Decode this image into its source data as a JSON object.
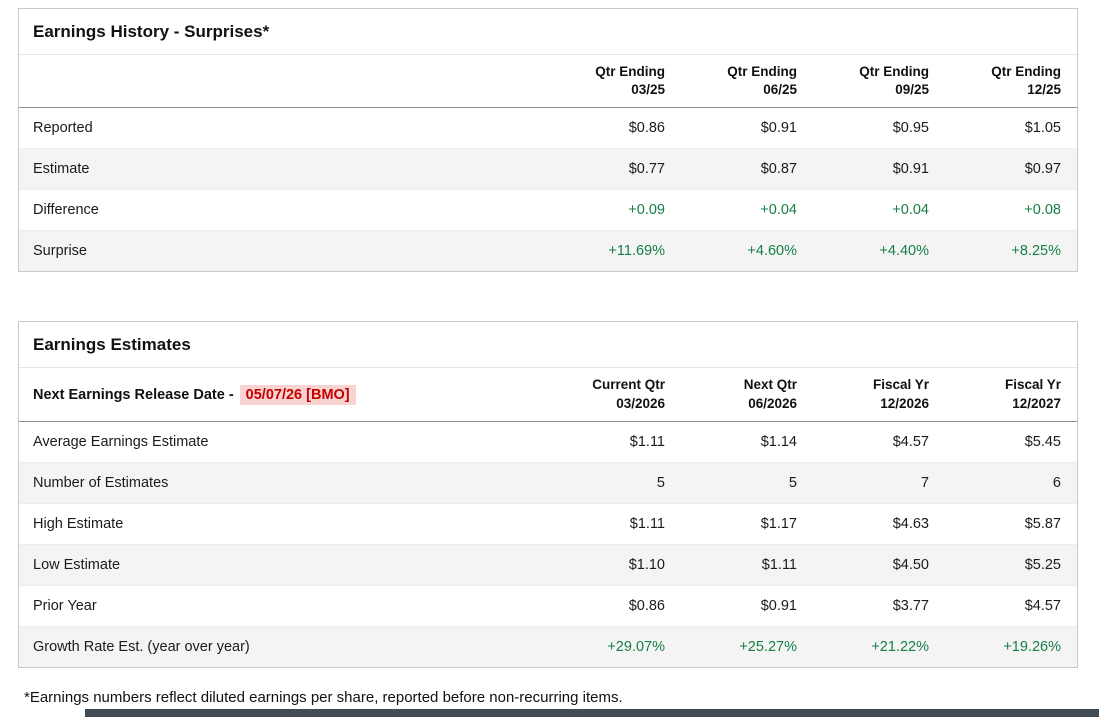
{
  "colors": {
    "green": "#157f45",
    "red": "#c40000",
    "red-bg": "#f9d2d2",
    "row-alt": "#f4f4f4",
    "footer-bar": "#434c54"
  },
  "earnings_history": {
    "title": "Earnings History - Surprises*",
    "columns": [
      "Qtr Ending\n03/25",
      "Qtr Ending\n06/25",
      "Qtr Ending\n09/25",
      "Qtr Ending\n12/25"
    ],
    "rows": [
      {
        "label": "Reported",
        "values": [
          "$0.86",
          "$0.91",
          "$0.95",
          "$1.05"
        ]
      },
      {
        "label": "Estimate",
        "values": [
          "$0.77",
          "$0.87",
          "$0.91",
          "$0.97"
        ]
      },
      {
        "label": "Difference",
        "values": [
          "+0.09",
          "+0.04",
          "+0.04",
          "+0.08"
        ]
      },
      {
        "label": "Surprise",
        "values": [
          "+11.69%",
          "+4.60%",
          "+4.40%",
          "+8.25%"
        ]
      }
    ]
  },
  "earnings_estimates": {
    "title": "Earnings Estimates",
    "release_label": "Next Earnings Release Date -",
    "release_date": "05/07/26 [BMO]",
    "columns": [
      "Current Qtr\n03/2026",
      "Next Qtr\n06/2026",
      "Fiscal Yr\n12/2026",
      "Fiscal Yr\n12/2027"
    ],
    "rows": [
      {
        "label": "Average Earnings Estimate",
        "values": [
          "$1.11",
          "$1.14",
          "$4.57",
          "$5.45"
        ]
      },
      {
        "label": "Number of Estimates",
        "values": [
          "5",
          "5",
          "7",
          "6"
        ]
      },
      {
        "label": "High Estimate",
        "values": [
          "$1.11",
          "$1.17",
          "$4.63",
          "$5.87"
        ]
      },
      {
        "label": "Low Estimate",
        "values": [
          "$1.10",
          "$1.11",
          "$4.50",
          "$5.25"
        ]
      },
      {
        "label": "Prior Year",
        "values": [
          "$0.86",
          "$0.91",
          "$3.77",
          "$4.57"
        ]
      },
      {
        "label": "Growth Rate Est. (year over year)",
        "values": [
          "+29.07%",
          "+25.27%",
          "+21.22%",
          "+19.26%"
        ]
      }
    ]
  },
  "footnote": "*Earnings numbers reflect diluted earnings per share, reported before non-recurring items."
}
